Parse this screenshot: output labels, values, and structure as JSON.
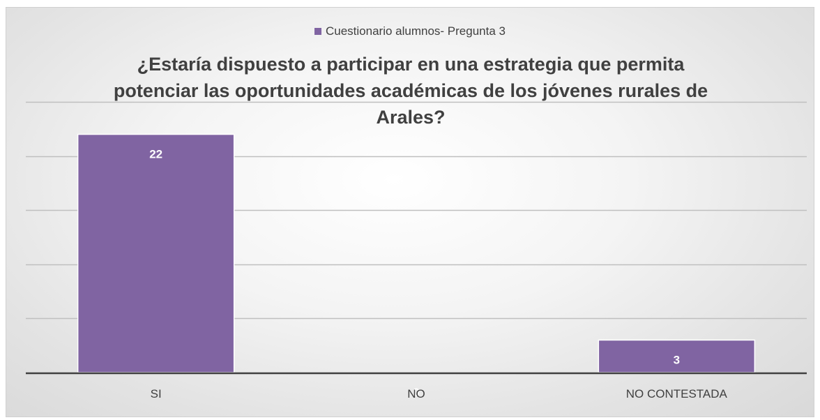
{
  "chart_data": {
    "type": "bar",
    "title": "¿Estaría dispuesto a participar en una estrategia que permita potenciar las oportunidades académicas de los jóvenes rurales de Arales?",
    "legend": {
      "label": "Cuestionario  alumnos- Pregunta 3",
      "position": "top"
    },
    "categories": [
      "SI",
      "NO",
      "NO CONTESTADA"
    ],
    "series": [
      {
        "name": "Cuestionario  alumnos- Pregunta 3",
        "values": [
          22,
          0,
          3
        ],
        "color": "#8064a2"
      }
    ],
    "data_labels": [
      "22",
      "0",
      "3"
    ],
    "ylim": [
      0,
      25
    ],
    "gridlines": true,
    "colors": {
      "bar": "#8064a2",
      "label": "#ffffff",
      "grid": "#bfbfbf",
      "axis": "#404040",
      "text": "#404040"
    }
  }
}
